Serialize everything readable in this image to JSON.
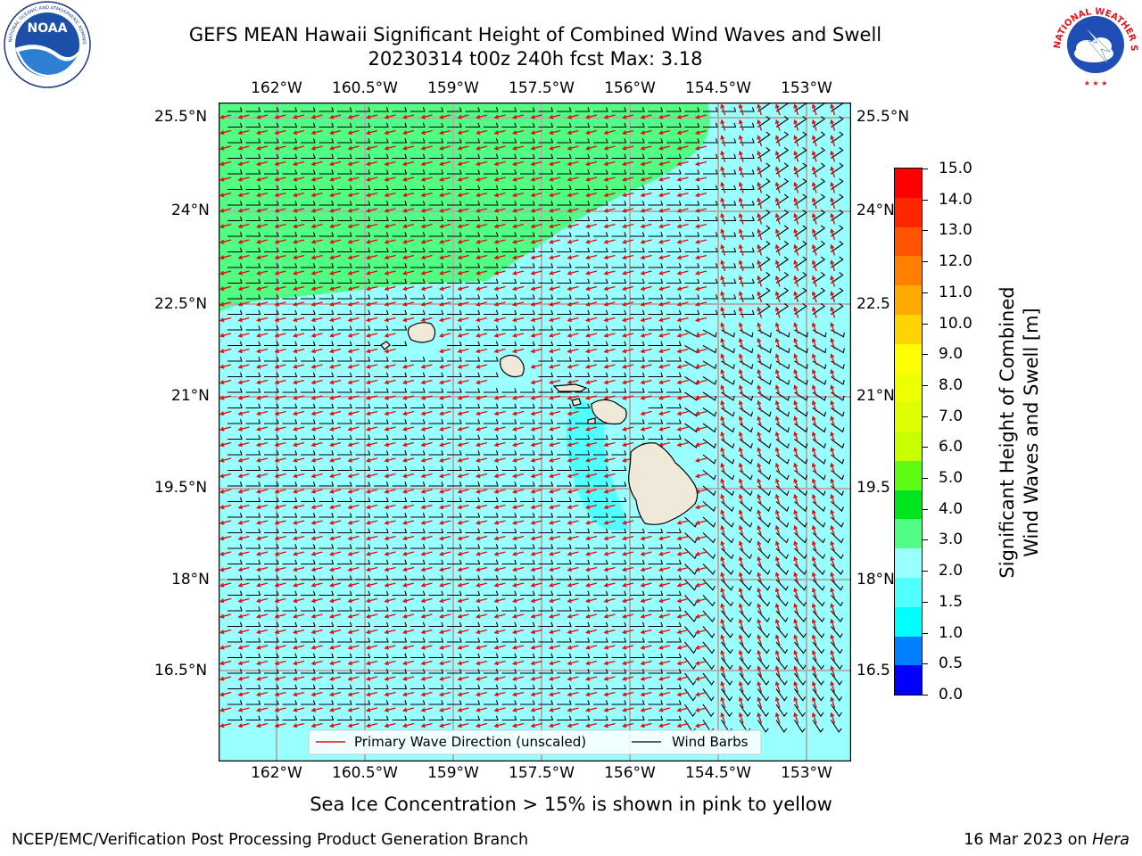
{
  "header": {
    "title_line1": "GEFS MEAN Hawaii Significant Height of Combined Wind Waves and Swell",
    "title_line2": "20230314 t00z 240h fcst   Max: 3.18"
  },
  "logos": {
    "noaa_text": "NOAA",
    "noaa_ring_text": "NATIONAL OCEANIC AND ATMOSPHERIC ADMINISTRATION",
    "noaa_ring_bottom": "U.S. DEPARTMENT OF COMMERCE",
    "nws_ring_text": "NATIONAL WEATHER SERVICE"
  },
  "map": {
    "lon_labels": [
      "162°W",
      "160.5°W",
      "159°W",
      "157.5°W",
      "156°W",
      "154.5°W",
      "153°W"
    ],
    "lat_labels_left": [
      "25.5°N",
      "24°N",
      "22.5°N",
      "21°N",
      "19.5°N",
      "18°N",
      "16.5°N"
    ],
    "lat_labels_right": [
      "25.5°N",
      "24°N",
      "22.5",
      "21°N",
      "19.5",
      "18°N",
      "16.5"
    ],
    "colors": {
      "ocean_2_3m": "#99ffff",
      "ocean_3_4m": "#52fd84",
      "ocean_1_5_2m": "#52ffff",
      "land": "#efe9d9",
      "wave_arrow": "#e01010",
      "wind_barb": "#000000",
      "grid": "#b0b0b0"
    },
    "legend": {
      "wave_label": "Primary Wave Direction (unscaled)",
      "barb_label": "Wind Barbs"
    }
  },
  "colorbar": {
    "label_line1": "Significant Height of Combined",
    "label_line2": "Wind Waves and Swell [m]",
    "ticks": [
      "15.0",
      "14.0",
      "13.0",
      "12.0",
      "11.0",
      "10.0",
      "9.0",
      "8.0",
      "7.0",
      "6.0",
      "5.0",
      "4.0",
      "3.0",
      "2.0",
      "1.5",
      "1.0",
      "0.5",
      "0.0"
    ],
    "colors_top_to_bottom": [
      "#ff0000",
      "#ff2600",
      "#ff5500",
      "#ff7f00",
      "#ffaa00",
      "#ffd400",
      "#ffff00",
      "#eeff00",
      "#ddff00",
      "#c7ff00",
      "#5efc14",
      "#00e61e",
      "#52fd84",
      "#99ffff",
      "#52ffff",
      "#00ffff",
      "#0080ff",
      "#0000ff"
    ]
  },
  "notes": {
    "sea_ice": "Sea Ice Concentration > 15% is shown in pink to yellow"
  },
  "footer": {
    "left": "NCEP/EMC/Verification Post Processing Product Generation Branch",
    "right_prefix": "16 Mar 2023 on ",
    "right_machine": "Hera"
  }
}
